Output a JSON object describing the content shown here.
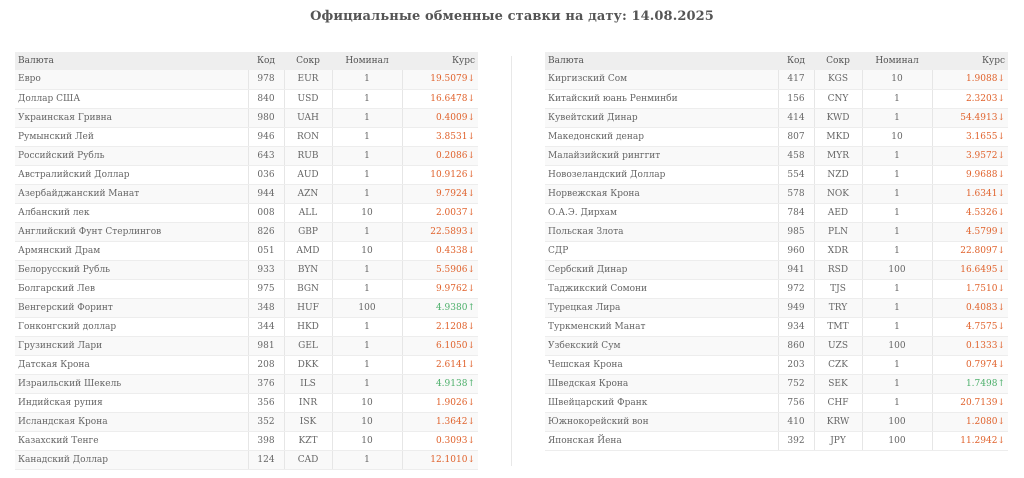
{
  "title": "Официальные обменные ставки на дату: 14.08.2025",
  "columns": {
    "name": "Валюта",
    "code": "Код",
    "abbr": "Сокр",
    "nominal": "Номинал",
    "rate": "Курс"
  },
  "colors": {
    "down": "#e0622c",
    "up": "#4caf6a",
    "header_bg": "#eeeeee"
  },
  "left_rows": [
    {
      "name": "Евро",
      "code": "978",
      "abbr": "EUR",
      "nominal": "1",
      "rate": "19.5079↓",
      "dir": "down"
    },
    {
      "name": "Доллар США",
      "code": "840",
      "abbr": "USD",
      "nominal": "1",
      "rate": "16.6478↓",
      "dir": "down"
    },
    {
      "name": "Украинская Гривна",
      "code": "980",
      "abbr": "UAH",
      "nominal": "1",
      "rate": "0.4009↓",
      "dir": "down"
    },
    {
      "name": "Румынский Лей",
      "code": "946",
      "abbr": "RON",
      "nominal": "1",
      "rate": "3.8531↓",
      "dir": "down"
    },
    {
      "name": "Российский Рубль",
      "code": "643",
      "abbr": "RUB",
      "nominal": "1",
      "rate": "0.2086↓",
      "dir": "down"
    },
    {
      "name": "Австралийский Доллар",
      "code": "036",
      "abbr": "AUD",
      "nominal": "1",
      "rate": "10.9126↓",
      "dir": "down"
    },
    {
      "name": "Азербайджанский Манат",
      "code": "944",
      "abbr": "AZN",
      "nominal": "1",
      "rate": "9.7924↓",
      "dir": "down"
    },
    {
      "name": "Албанский лек",
      "code": "008",
      "abbr": "ALL",
      "nominal": "10",
      "rate": "2.0037↓",
      "dir": "down"
    },
    {
      "name": "Английский Фунт Стерлингов",
      "code": "826",
      "abbr": "GBP",
      "nominal": "1",
      "rate": "22.5893↓",
      "dir": "down"
    },
    {
      "name": "Армянский Драм",
      "code": "051",
      "abbr": "AMD",
      "nominal": "10",
      "rate": "0.4338↓",
      "dir": "down"
    },
    {
      "name": "Белорусский Рубль",
      "code": "933",
      "abbr": "BYN",
      "nominal": "1",
      "rate": "5.5906↓",
      "dir": "down"
    },
    {
      "name": "Болгарский Лев",
      "code": "975",
      "abbr": "BGN",
      "nominal": "1",
      "rate": "9.9762↓",
      "dir": "down"
    },
    {
      "name": "Венгерский Форинт",
      "code": "348",
      "abbr": "HUF",
      "nominal": "100",
      "rate": "4.9380↑",
      "dir": "up"
    },
    {
      "name": "Гонконгский доллар",
      "code": "344",
      "abbr": "HKD",
      "nominal": "1",
      "rate": "2.1208↓",
      "dir": "down"
    },
    {
      "name": "Грузинский Лари",
      "code": "981",
      "abbr": "GEL",
      "nominal": "1",
      "rate": "6.1050↓",
      "dir": "down"
    },
    {
      "name": "Датская Крона",
      "code": "208",
      "abbr": "DKK",
      "nominal": "1",
      "rate": "2.6141↓",
      "dir": "down"
    },
    {
      "name": "Израильский Шекель",
      "code": "376",
      "abbr": "ILS",
      "nominal": "1",
      "rate": "4.9138↑",
      "dir": "up"
    },
    {
      "name": "Индийская рупия",
      "code": "356",
      "abbr": "INR",
      "nominal": "10",
      "rate": "1.9026↓",
      "dir": "down"
    },
    {
      "name": "Исландская Крона",
      "code": "352",
      "abbr": "ISK",
      "nominal": "10",
      "rate": "1.3642↓",
      "dir": "down"
    },
    {
      "name": "Казахский Тенге",
      "code": "398",
      "abbr": "KZT",
      "nominal": "10",
      "rate": "0.3093↓",
      "dir": "down"
    },
    {
      "name": "Канадский Доллар",
      "code": "124",
      "abbr": "CAD",
      "nominal": "1",
      "rate": "12.1010↓",
      "dir": "down"
    }
  ],
  "right_rows": [
    {
      "name": "Киргизский Сом",
      "code": "417",
      "abbr": "KGS",
      "nominal": "10",
      "rate": "1.9088↓",
      "dir": "down"
    },
    {
      "name": "Китайский юань Ренминби",
      "code": "156",
      "abbr": "CNY",
      "nominal": "1",
      "rate": "2.3203↓",
      "dir": "down"
    },
    {
      "name": "Кувейтский Динар",
      "code": "414",
      "abbr": "KWD",
      "nominal": "1",
      "rate": "54.4913↓",
      "dir": "down"
    },
    {
      "name": "Македонский денар",
      "code": "807",
      "abbr": "MKD",
      "nominal": "10",
      "rate": "3.1655↓",
      "dir": "down"
    },
    {
      "name": "Малайзийский ринггит",
      "code": "458",
      "abbr": "MYR",
      "nominal": "1",
      "rate": "3.9572↓",
      "dir": "down"
    },
    {
      "name": "Новозеландский Доллар",
      "code": "554",
      "abbr": "NZD",
      "nominal": "1",
      "rate": "9.9688↓",
      "dir": "down"
    },
    {
      "name": "Норвежская Крона",
      "code": "578",
      "abbr": "NOK",
      "nominal": "1",
      "rate": "1.6341↓",
      "dir": "down"
    },
    {
      "name": "О.А.Э. Дирхам",
      "code": "784",
      "abbr": "AED",
      "nominal": "1",
      "rate": "4.5326↓",
      "dir": "down"
    },
    {
      "name": "Польская Злота",
      "code": "985",
      "abbr": "PLN",
      "nominal": "1",
      "rate": "4.5799↓",
      "dir": "down"
    },
    {
      "name": "СДР",
      "code": "960",
      "abbr": "XDR",
      "nominal": "1",
      "rate": "22.8097↓",
      "dir": "down"
    },
    {
      "name": "Сербский Динар",
      "code": "941",
      "abbr": "RSD",
      "nominal": "100",
      "rate": "16.6495↓",
      "dir": "down"
    },
    {
      "name": "Таджикский Сомони",
      "code": "972",
      "abbr": "TJS",
      "nominal": "1",
      "rate": "1.7510↓",
      "dir": "down"
    },
    {
      "name": "Турецкая Лира",
      "code": "949",
      "abbr": "TRY",
      "nominal": "1",
      "rate": "0.4083↓",
      "dir": "down"
    },
    {
      "name": "Туркменский Манат",
      "code": "934",
      "abbr": "TMT",
      "nominal": "1",
      "rate": "4.7575↓",
      "dir": "down"
    },
    {
      "name": "Узбекский Сум",
      "code": "860",
      "abbr": "UZS",
      "nominal": "100",
      "rate": "0.1333↓",
      "dir": "down"
    },
    {
      "name": "Чешская Крона",
      "code": "203",
      "abbr": "CZK",
      "nominal": "1",
      "rate": "0.7974↓",
      "dir": "down"
    },
    {
      "name": "Шведская Крона",
      "code": "752",
      "abbr": "SEK",
      "nominal": "1",
      "rate": "1.7498↑",
      "dir": "up"
    },
    {
      "name": "Швейцарский Франк",
      "code": "756",
      "abbr": "CHF",
      "nominal": "1",
      "rate": "20.7139↓",
      "dir": "down"
    },
    {
      "name": "Южнокорейский вон",
      "code": "410",
      "abbr": "KRW",
      "nominal": "100",
      "rate": "1.2080↓",
      "dir": "down"
    },
    {
      "name": "Японская Йена",
      "code": "392",
      "abbr": "JPY",
      "nominal": "100",
      "rate": "11.2942↓",
      "dir": "down"
    }
  ]
}
